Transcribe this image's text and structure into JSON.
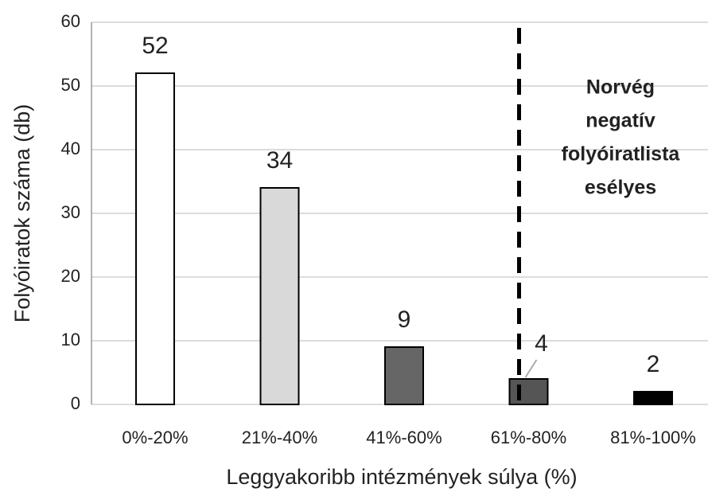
{
  "chart_data": {
    "type": "bar",
    "categories": [
      "0%-20%",
      "21%-40%",
      "41%-60%",
      "61%-80%",
      "81%-100%"
    ],
    "values": [
      52,
      34,
      9,
      4,
      2
    ],
    "colors": [
      "#ffffff",
      "#d9d9d9",
      "#666666",
      "#555555",
      "#000000"
    ],
    "ylim": [
      0,
      60
    ],
    "yticks": [
      0,
      10,
      20,
      30,
      40,
      50,
      60
    ],
    "grid": true,
    "xlabel": "Leggyakoribb intézmények súlya (%)",
    "ylabel": "Folyóiratok száma (db)",
    "annotation": [
      "Norvég",
      "negatív",
      "folyóiratlista",
      "esélyes"
    ]
  }
}
